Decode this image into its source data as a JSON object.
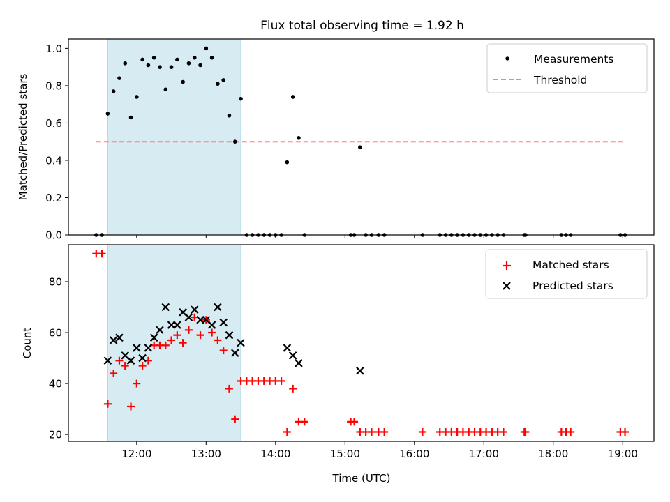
{
  "chart_data": [
    {
      "type": "scatter",
      "panel": "top",
      "title": "Flux total observing time = 1.92 h",
      "xlabel": "",
      "ylabel": "Matched/Predicted stars",
      "xlim": [
        "11:01",
        "19:27"
      ],
      "ylim": [
        0,
        1.05
      ],
      "yticks": [
        0.0,
        0.2,
        0.4,
        0.6,
        0.8,
        1.0
      ],
      "ytick_labels": [
        "0.0",
        "0.2",
        "0.4",
        "0.6",
        "0.8",
        "1.0"
      ],
      "xticks": [
        "12:00",
        "13:00",
        "14:00",
        "15:00",
        "16:00",
        "17:00",
        "18:00",
        "19:00"
      ],
      "shaded_interval": {
        "start": "11:35",
        "end": "13:30",
        "color": "#add8e6"
      },
      "threshold": {
        "value": 0.5,
        "start": "11:25",
        "end": "19:02",
        "color": "#ff7f7f",
        "style": "dashed"
      },
      "legend": {
        "position": "top-right",
        "entries": [
          {
            "label": "Measurements",
            "marker": "dot",
            "color": "#000000"
          },
          {
            "label": "Threshold",
            "marker": "dashed-line",
            "color": "#ff7f7f"
          }
        ]
      },
      "series": [
        {
          "name": "Measurements",
          "color": "#000000",
          "marker": "dot",
          "points": [
            [
              "11:25",
              0
            ],
            [
              "11:30",
              0
            ],
            [
              "11:35",
              0.65
            ],
            [
              "11:40",
              0.77
            ],
            [
              "11:45",
              0.84
            ],
            [
              "11:50",
              0.92
            ],
            [
              "11:55",
              0.63
            ],
            [
              "12:00",
              0.74
            ],
            [
              "12:05",
              0.94
            ],
            [
              "12:10",
              0.91
            ],
            [
              "12:15",
              0.95
            ],
            [
              "12:20",
              0.9
            ],
            [
              "12:25",
              0.78
            ],
            [
              "12:30",
              0.9
            ],
            [
              "12:35",
              0.94
            ],
            [
              "12:40",
              0.82
            ],
            [
              "12:45",
              0.92
            ],
            [
              "12:50",
              0.95
            ],
            [
              "12:55",
              0.91
            ],
            [
              "13:00",
              1.0
            ],
            [
              "13:05",
              0.95
            ],
            [
              "13:10",
              0.81
            ],
            [
              "13:15",
              0.83
            ],
            [
              "13:20",
              0.64
            ],
            [
              "13:25",
              0.5
            ],
            [
              "13:30",
              0.73
            ],
            [
              "13:35",
              0
            ],
            [
              "13:40",
              0
            ],
            [
              "13:45",
              0
            ],
            [
              "13:50",
              0
            ],
            [
              "13:55",
              0
            ],
            [
              "14:00",
              0
            ],
            [
              "14:05",
              0
            ],
            [
              "14:10",
              0.39
            ],
            [
              "14:15",
              0.74
            ],
            [
              "14:20",
              0.52
            ],
            [
              "14:25",
              0
            ],
            [
              "15:05",
              0
            ],
            [
              "15:08",
              0
            ],
            [
              "15:13",
              0.47
            ],
            [
              "15:18",
              0
            ],
            [
              "15:23",
              0
            ],
            [
              "15:29",
              0
            ],
            [
              "15:34",
              0
            ],
            [
              "16:07",
              0
            ],
            [
              "16:22",
              0
            ],
            [
              "16:27",
              0
            ],
            [
              "16:32",
              0
            ],
            [
              "16:37",
              0
            ],
            [
              "16:42",
              0
            ],
            [
              "16:47",
              0
            ],
            [
              "16:52",
              0
            ],
            [
              "16:57",
              0
            ],
            [
              "17:02",
              0
            ],
            [
              "17:07",
              0
            ],
            [
              "17:12",
              0
            ],
            [
              "17:17",
              0
            ],
            [
              "17:35",
              0
            ],
            [
              "17:36",
              0
            ],
            [
              "18:07",
              0
            ],
            [
              "18:11",
              0
            ],
            [
              "18:15",
              0
            ],
            [
              "18:58",
              0
            ],
            [
              "19:02",
              0
            ]
          ]
        }
      ]
    },
    {
      "type": "scatter",
      "panel": "bottom",
      "title": "",
      "xlabel": "Time (UTC)",
      "ylabel": "Count",
      "xlim": [
        "11:01",
        "19:27"
      ],
      "ylim": [
        17.3,
        94.5
      ],
      "yticks": [
        20,
        40,
        60,
        80
      ],
      "ytick_labels": [
        "20",
        "40",
        "60",
        "80"
      ],
      "xticks": [
        "12:00",
        "13:00",
        "14:00",
        "15:00",
        "16:00",
        "17:00",
        "18:00",
        "19:00"
      ],
      "xtick_labels": [
        "12:00",
        "13:00",
        "14:00",
        "15:00",
        "16:00",
        "17:00",
        "18:00",
        "19:00"
      ],
      "shaded_interval": {
        "start": "11:35",
        "end": "13:30",
        "color": "#add8e6"
      },
      "legend": {
        "position": "top-right",
        "entries": [
          {
            "label": "Matched stars",
            "marker": "plus",
            "color": "#ff0000"
          },
          {
            "label": "Predicted stars",
            "marker": "x",
            "color": "#000000"
          }
        ]
      },
      "series": [
        {
          "name": "Matched stars",
          "color": "#ff0000",
          "marker": "plus",
          "points": [
            [
              "11:25",
              91
            ],
            [
              "11:30",
              91
            ],
            [
              "11:35",
              32
            ],
            [
              "11:40",
              44
            ],
            [
              "11:45",
              49
            ],
            [
              "11:50",
              47
            ],
            [
              "11:55",
              31
            ],
            [
              "12:00",
              40
            ],
            [
              "12:05",
              47
            ],
            [
              "12:10",
              49
            ],
            [
              "12:15",
              55
            ],
            [
              "12:20",
              55
            ],
            [
              "12:25",
              55
            ],
            [
              "12:30",
              57
            ],
            [
              "12:35",
              59
            ],
            [
              "12:40",
              56
            ],
            [
              "12:45",
              61
            ],
            [
              "12:50",
              66
            ],
            [
              "12:55",
              59
            ],
            [
              "13:00",
              65
            ],
            [
              "13:05",
              60
            ],
            [
              "13:10",
              57
            ],
            [
              "13:15",
              53
            ],
            [
              "13:20",
              38
            ],
            [
              "13:25",
              26
            ],
            [
              "13:30",
              41
            ],
            [
              "13:35",
              41
            ],
            [
              "13:40",
              41
            ],
            [
              "13:45",
              41
            ],
            [
              "13:50",
              41
            ],
            [
              "13:55",
              41
            ],
            [
              "14:00",
              41
            ],
            [
              "14:05",
              41
            ],
            [
              "14:10",
              21
            ],
            [
              "14:15",
              38
            ],
            [
              "14:20",
              25
            ],
            [
              "14:25",
              25
            ],
            [
              "15:05",
              25
            ],
            [
              "15:08",
              25
            ],
            [
              "15:13",
              21
            ],
            [
              "15:18",
              21
            ],
            [
              "15:23",
              21
            ],
            [
              "15:29",
              21
            ],
            [
              "15:34",
              21
            ],
            [
              "16:07",
              21
            ],
            [
              "16:22",
              21
            ],
            [
              "16:27",
              21
            ],
            [
              "16:32",
              21
            ],
            [
              "16:37",
              21
            ],
            [
              "16:42",
              21
            ],
            [
              "16:47",
              21
            ],
            [
              "16:52",
              21
            ],
            [
              "16:57",
              21
            ],
            [
              "17:02",
              21
            ],
            [
              "17:07",
              21
            ],
            [
              "17:12",
              21
            ],
            [
              "17:17",
              21
            ],
            [
              "17:35",
              21
            ],
            [
              "17:36",
              21
            ],
            [
              "18:07",
              21
            ],
            [
              "18:11",
              21
            ],
            [
              "18:15",
              21
            ],
            [
              "18:58",
              21
            ],
            [
              "19:02",
              21
            ]
          ]
        },
        {
          "name": "Predicted stars",
          "color": "#000000",
          "marker": "x",
          "points": [
            [
              "11:35",
              49
            ],
            [
              "11:40",
              57
            ],
            [
              "11:45",
              58
            ],
            [
              "11:50",
              51
            ],
            [
              "11:55",
              49
            ],
            [
              "12:00",
              54
            ],
            [
              "12:05",
              50
            ],
            [
              "12:10",
              54
            ],
            [
              "12:15",
              58
            ],
            [
              "12:20",
              61
            ],
            [
              "12:25",
              70
            ],
            [
              "12:30",
              63
            ],
            [
              "12:35",
              63
            ],
            [
              "12:40",
              68
            ],
            [
              "12:45",
              66
            ],
            [
              "12:50",
              69
            ],
            [
              "12:55",
              65
            ],
            [
              "13:00",
              65
            ],
            [
              "13:05",
              63
            ],
            [
              "13:10",
              70
            ],
            [
              "13:15",
              64
            ],
            [
              "13:20",
              59
            ],
            [
              "13:25",
              52
            ],
            [
              "13:30",
              56
            ],
            [
              "14:10",
              54
            ],
            [
              "14:15",
              51
            ],
            [
              "14:20",
              48
            ],
            [
              "15:13",
              45
            ]
          ]
        }
      ]
    }
  ]
}
